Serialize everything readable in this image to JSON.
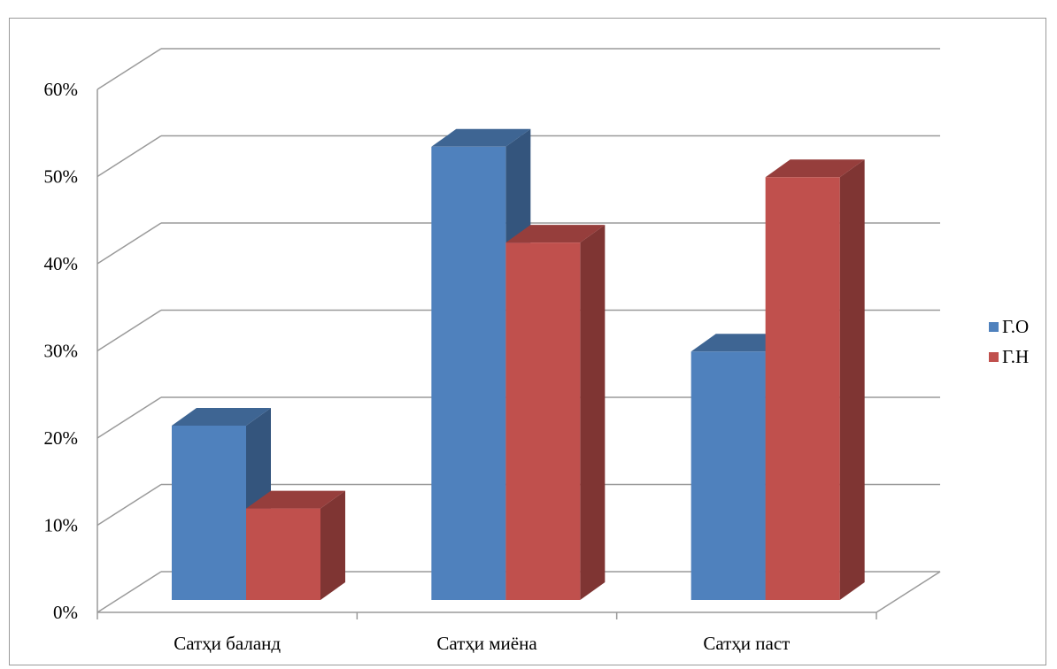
{
  "chart_data": {
    "type": "bar",
    "title": "",
    "categories": [
      "Сатҳи баланд",
      "Сатҳи миёна",
      "Сатҳи паст"
    ],
    "series": [
      {
        "name": "Г.О",
        "values": [
          20,
          52,
          28.5
        ],
        "color": "#4F81BD"
      },
      {
        "name": "Г.Н",
        "values": [
          10.5,
          41,
          48.5
        ],
        "color": "#C0504D"
      }
    ],
    "y_ticks": [
      "0%",
      "10%",
      "20%",
      "30%",
      "40%",
      "50%",
      "60%"
    ],
    "ylim": [
      0,
      60
    ],
    "ylabel": "",
    "xlabel": "",
    "grid": true,
    "style": "3d-clustered-column",
    "legend_position": "right"
  }
}
